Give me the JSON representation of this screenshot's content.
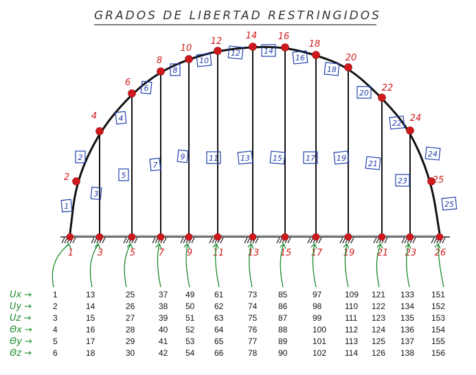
{
  "title": "GRADOS DE LIBERTAD RESTRINGIDOS",
  "colors": {
    "node": "#d0191c",
    "element": "#1f3fae",
    "dof": "#1a8a2a",
    "structure": "#111111"
  },
  "arch_nodes": [
    {
      "label": "2"
    },
    {
      "label": "4"
    },
    {
      "label": "6"
    },
    {
      "label": "8"
    },
    {
      "label": "10"
    },
    {
      "label": "12"
    },
    {
      "label": "14"
    },
    {
      "label": "16"
    },
    {
      "label": "18"
    },
    {
      "label": "20"
    },
    {
      "label": "22"
    },
    {
      "label": "24"
    },
    {
      "label": "25"
    }
  ],
  "base_nodes": [
    {
      "label": "1"
    },
    {
      "label": "3"
    },
    {
      "label": "5"
    },
    {
      "label": "7"
    },
    {
      "label": "9"
    },
    {
      "label": "11"
    },
    {
      "label": "13"
    },
    {
      "label": "15"
    },
    {
      "label": "17"
    },
    {
      "label": "19"
    },
    {
      "label": "21"
    },
    {
      "label": "23"
    },
    {
      "label": "26"
    }
  ],
  "elements": [
    "1",
    "2",
    "3",
    "4",
    "5",
    "6",
    "7",
    "8",
    "9",
    "10",
    "11",
    "12",
    "13",
    "14",
    "15",
    "16",
    "17",
    "18",
    "19",
    "20",
    "21",
    "22",
    "23",
    "24",
    "25"
  ],
  "dof_labels": [
    "Ux →",
    "Uy →",
    "Uz →",
    "Θx →",
    "Θy →",
    "Θz →"
  ],
  "dof_table": [
    [
      "1",
      "13",
      "25",
      "37",
      "49",
      "61",
      "73",
      "85",
      "97",
      "109",
      "121",
      "133",
      "151"
    ],
    [
      "2",
      "14",
      "26",
      "38",
      "50",
      "62",
      "74",
      "86",
      "98",
      "110",
      "122",
      "134",
      "152"
    ],
    [
      "3",
      "15",
      "27",
      "39",
      "51",
      "63",
      "75",
      "87",
      "99",
      "111",
      "123",
      "135",
      "153"
    ],
    [
      "4",
      "16",
      "28",
      "40",
      "52",
      "64",
      "76",
      "88",
      "100",
      "112",
      "124",
      "136",
      "154"
    ],
    [
      "5",
      "17",
      "29",
      "41",
      "53",
      "65",
      "77",
      "89",
      "101",
      "113",
      "125",
      "137",
      "155"
    ],
    [
      "6",
      "18",
      "30",
      "42",
      "54",
      "66",
      "78",
      "90",
      "102",
      "114",
      "126",
      "138",
      "156"
    ]
  ]
}
